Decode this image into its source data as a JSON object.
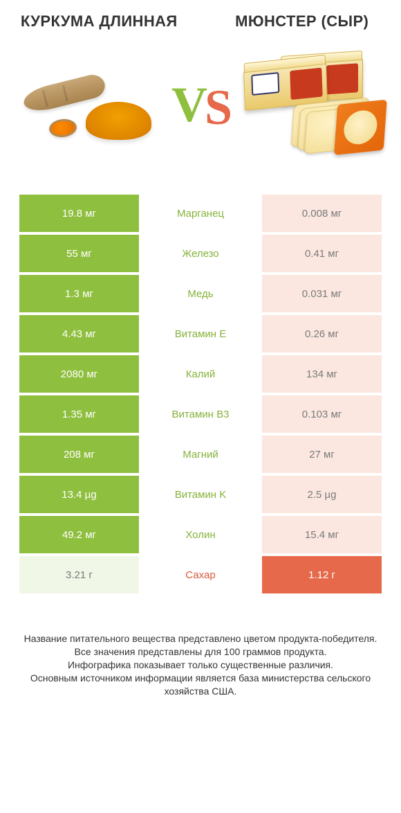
{
  "colors": {
    "left_win": "#8fbf3f",
    "right_win": "#e5694a",
    "left_lose": "#f1f7e6",
    "right_lose": "#fbe7e0",
    "nutrient_left": "#86b23a",
    "nutrient_right": "#d85a3c",
    "title_font_size": 22,
    "vs_font_size": 72
  },
  "left": {
    "title": "Куркума длинная"
  },
  "right": {
    "title": "Мюнстер (сыр)"
  },
  "vs": {
    "v": "V",
    "s": "S"
  },
  "rows": [
    {
      "nutrient": "Марганец",
      "left_val": "19.8 мг",
      "right_val": "0.008 мг",
      "winner": "left"
    },
    {
      "nutrient": "Железо",
      "left_val": "55 мг",
      "right_val": "0.41 мг",
      "winner": "left"
    },
    {
      "nutrient": "Медь",
      "left_val": "1.3 мг",
      "right_val": "0.031 мг",
      "winner": "left"
    },
    {
      "nutrient": "Витамин E",
      "left_val": "4.43 мг",
      "right_val": "0.26 мг",
      "winner": "left"
    },
    {
      "nutrient": "Калий",
      "left_val": "2080 мг",
      "right_val": "134 мг",
      "winner": "left"
    },
    {
      "nutrient": "Витамин B3",
      "left_val": "1.35 мг",
      "right_val": "0.103 мг",
      "winner": "left"
    },
    {
      "nutrient": "Магний",
      "left_val": "208 мг",
      "right_val": "27 мг",
      "winner": "left"
    },
    {
      "nutrient": "Витамин K",
      "left_val": "13.4 µg",
      "right_val": "2.5 µg",
      "winner": "left"
    },
    {
      "nutrient": "Холин",
      "left_val": "49.2 мг",
      "right_val": "15.4 мг",
      "winner": "left"
    },
    {
      "nutrient": "Сахар",
      "left_val": "3.21 г",
      "right_val": "1.12 г",
      "winner": "right"
    }
  ],
  "footnote": {
    "l1": "Название питательного вещества представлено цветом продукта-победителя.",
    "l2": "Все значения представлены для 100 граммов продукта.",
    "l3": "Инфографика показывает только существенные различия.",
    "l4": "Основным источником информации является база министерства сельского хозяйства США."
  }
}
